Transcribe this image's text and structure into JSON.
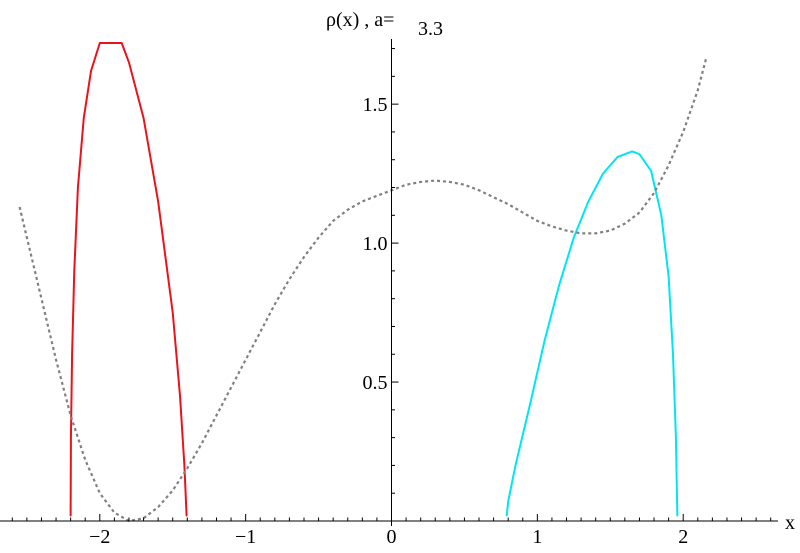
{
  "chart_data": {
    "type": "line",
    "title": {
      "prefix": "ρ(x) , a=",
      "value": "3.3"
    },
    "xlabel": "x",
    "ylabel": "",
    "xlim": [
      -2.65,
      2.65
    ],
    "ylim": [
      0,
      1.72
    ],
    "x_ticks_major": [
      {
        "value": -2,
        "label": "−2"
      },
      {
        "value": -1,
        "label": "−1"
      },
      {
        "value": 0,
        "label": "0"
      },
      {
        "value": 1,
        "label": "1"
      },
      {
        "value": 2,
        "label": "2"
      }
    ],
    "y_ticks_major": [
      {
        "value": 0.5,
        "label": "0.5"
      },
      {
        "value": 1.0,
        "label": "1.0"
      },
      {
        "value": 1.5,
        "label": "1.5"
      }
    ],
    "grid": false,
    "legend": "none",
    "series": [
      {
        "color": "#e8141c",
        "style": "solid",
        "points": [
          [
            -2.2,
            0.02
          ],
          [
            -2.198,
            0.3
          ],
          [
            -2.19,
            0.6
          ],
          [
            -2.175,
            0.9
          ],
          [
            -2.15,
            1.2
          ],
          [
            -2.11,
            1.45
          ],
          [
            -2.06,
            1.62
          ],
          [
            -2.0,
            1.72
          ],
          [
            -1.85,
            1.72
          ],
          [
            -1.8,
            1.65
          ],
          [
            -1.7,
            1.45
          ],
          [
            -1.6,
            1.15
          ],
          [
            -1.5,
            0.75
          ],
          [
            -1.45,
            0.45
          ],
          [
            -1.42,
            0.2
          ],
          [
            -1.405,
            0.02
          ]
        ]
      },
      {
        "color": "#00e5f0",
        "style": "solid",
        "points": [
          [
            0.79,
            0.02
          ],
          [
            0.8,
            0.07
          ],
          [
            0.85,
            0.2
          ],
          [
            0.95,
            0.42
          ],
          [
            1.05,
            0.65
          ],
          [
            1.15,
            0.85
          ],
          [
            1.25,
            1.02
          ],
          [
            1.35,
            1.15
          ],
          [
            1.45,
            1.25
          ],
          [
            1.55,
            1.31
          ],
          [
            1.65,
            1.33
          ],
          [
            1.7,
            1.32
          ],
          [
            1.78,
            1.26
          ],
          [
            1.85,
            1.1
          ],
          [
            1.9,
            0.88
          ],
          [
            1.93,
            0.6
          ],
          [
            1.95,
            0.3
          ],
          [
            1.96,
            0.02
          ]
        ]
      },
      {
        "color": "#808080",
        "style": "dotted",
        "points": [
          [
            -2.55,
            1.13
          ],
          [
            -2.4,
            0.8
          ],
          [
            -2.3,
            0.58
          ],
          [
            -2.2,
            0.38
          ],
          [
            -2.1,
            0.22
          ],
          [
            -2.0,
            0.1
          ],
          [
            -1.9,
            0.03
          ],
          [
            -1.8,
            0.0
          ],
          [
            -1.7,
            0.01
          ],
          [
            -1.6,
            0.05
          ],
          [
            -1.5,
            0.11
          ],
          [
            -1.4,
            0.19
          ],
          [
            -1.3,
            0.28
          ],
          [
            -1.2,
            0.38
          ],
          [
            -1.1,
            0.48
          ],
          [
            -1.0,
            0.58
          ],
          [
            -0.9,
            0.68
          ],
          [
            -0.8,
            0.78
          ],
          [
            -0.7,
            0.87
          ],
          [
            -0.6,
            0.95
          ],
          [
            -0.5,
            1.02
          ],
          [
            -0.4,
            1.08
          ],
          [
            -0.3,
            1.12
          ],
          [
            -0.2,
            1.15
          ],
          [
            -0.1,
            1.17
          ],
          [
            0.0,
            1.19
          ],
          [
            0.1,
            1.21
          ],
          [
            0.2,
            1.22
          ],
          [
            0.3,
            1.225
          ],
          [
            0.4,
            1.22
          ],
          [
            0.5,
            1.21
          ],
          [
            0.6,
            1.19
          ],
          [
            0.7,
            1.165
          ],
          [
            0.8,
            1.14
          ],
          [
            0.9,
            1.11
          ],
          [
            1.0,
            1.08
          ],
          [
            1.1,
            1.06
          ],
          [
            1.2,
            1.045
          ],
          [
            1.3,
            1.035
          ],
          [
            1.4,
            1.035
          ],
          [
            1.5,
            1.045
          ],
          [
            1.6,
            1.07
          ],
          [
            1.7,
            1.11
          ],
          [
            1.8,
            1.18
          ],
          [
            1.9,
            1.28
          ],
          [
            2.0,
            1.4
          ],
          [
            2.1,
            1.55
          ],
          [
            2.16,
            1.67
          ]
        ]
      }
    ]
  }
}
